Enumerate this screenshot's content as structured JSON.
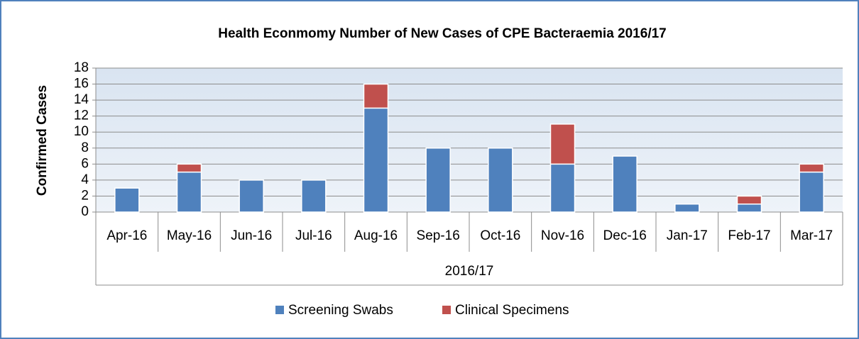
{
  "chart_data": {
    "type": "stacked_bar",
    "title": "Health Econmomy  Number of New Cases of CPE Bacteraemia 2016/17",
    "y_label": "Confirmed Cases",
    "x_label": "2016/17",
    "categories": [
      "Apr-16",
      "May-16",
      "Jun-16",
      "Jul-16",
      "Aug-16",
      "Sep-16",
      "Oct-16",
      "Nov-16",
      "Dec-16",
      "Jan-17",
      "Feb-17",
      "Mar-17"
    ],
    "series": [
      {
        "name": "Screening Swabs",
        "color": "#4f81bd",
        "values": [
          3,
          5,
          4,
          4,
          13,
          8,
          8,
          6,
          7,
          1,
          1,
          5
        ]
      },
      {
        "name": "Clinical Specimens",
        "color": "#c0504d",
        "values": [
          0,
          1,
          0,
          0,
          3,
          0,
          0,
          5,
          0,
          0,
          1,
          1
        ]
      }
    ],
    "ylim": [
      0,
      18
    ],
    "yticks": [
      0,
      2,
      4,
      6,
      8,
      10,
      12,
      14,
      16,
      18
    ],
    "grid": true,
    "legend": "bottom"
  }
}
